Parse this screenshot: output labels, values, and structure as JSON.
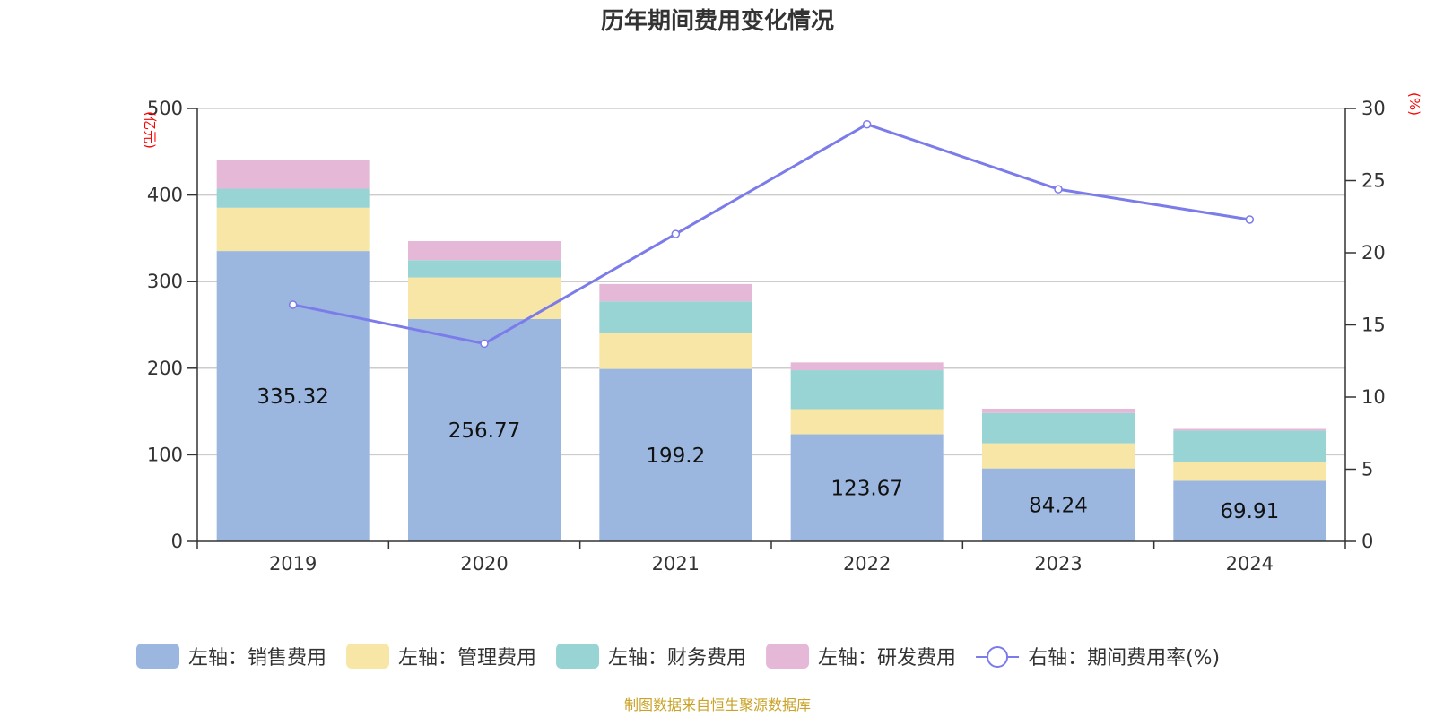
{
  "chart_data": {
    "type": "bar",
    "title": "历年期间费用变化情况",
    "categories": [
      "2019",
      "2020",
      "2021",
      "2022",
      "2023",
      "2024"
    ],
    "left_axis": {
      "unit": "(亿元)",
      "ylim": [
        0,
        500
      ],
      "ticks": [
        0,
        100,
        200,
        300,
        400,
        500
      ]
    },
    "right_axis": {
      "unit": "(%)",
      "ylim": [
        0,
        30
      ],
      "ticks": [
        0,
        5,
        10,
        15,
        20,
        25,
        30
      ]
    },
    "series": [
      {
        "name": "左轴：销售费用",
        "type": "bar",
        "axis": "left",
        "color": "#9bb7e0",
        "values": [
          335.32,
          256.77,
          199.2,
          123.67,
          84.24,
          69.91
        ],
        "labels": [
          "335.32",
          "256.77",
          "199.2",
          "123.67",
          "84.24",
          "69.91"
        ]
      },
      {
        "name": "左轴：管理费用",
        "type": "bar",
        "axis": "left",
        "color": "#f7e6a6",
        "values": [
          50,
          48,
          42,
          29,
          29,
          22
        ]
      },
      {
        "name": "左轴：财务费用",
        "type": "bar",
        "axis": "left",
        "color": "#98d4d4",
        "values": [
          22,
          20,
          36,
          45,
          35,
          36
        ]
      },
      {
        "name": "左轴：研发费用",
        "type": "bar",
        "axis": "left",
        "color": "#e6b8d8",
        "values": [
          33,
          22,
          20,
          9,
          5,
          2
        ]
      },
      {
        "name": "右轴：期间费用率(%)",
        "type": "line",
        "axis": "right",
        "color": "#7b7bea",
        "values": [
          16.4,
          13.7,
          21.3,
          28.9,
          24.4,
          22.3
        ]
      }
    ],
    "grid": true,
    "legend": "bottom"
  },
  "footer": {
    "source": "制图数据来自恒生聚源数据库"
  }
}
